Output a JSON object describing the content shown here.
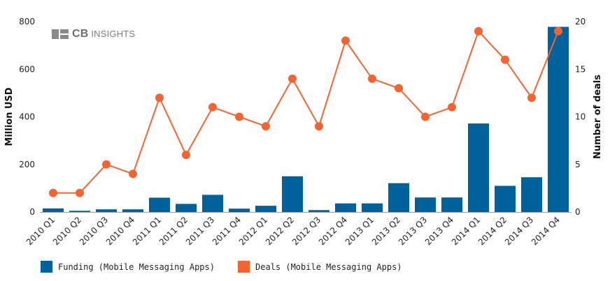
{
  "chart_data": {
    "type": "bar+line",
    "categories": [
      "2010 Q1",
      "2010 Q2",
      "2010 Q3",
      "2010 Q4",
      "2011 Q1",
      "2011 Q2",
      "2011 Q3",
      "2011 Q4",
      "2012 Q1",
      "2012 Q2",
      "2012 Q3",
      "2012 Q4",
      "2013 Q1",
      "2013 Q2",
      "2013 Q3",
      "2013 Q4",
      "2014 Q1",
      "2014 Q2",
      "2014 Q3",
      "2014 Q4"
    ],
    "series": [
      {
        "name": "Funding (Mobile Messaging Apps)",
        "type": "bar",
        "axis": "left",
        "color": "#00629b",
        "values": [
          15,
          5,
          11,
          11,
          60,
          34,
          72,
          14,
          26,
          150,
          8,
          36,
          36,
          121,
          61,
          61,
          372,
          110,
          146,
          778
        ]
      },
      {
        "name": "Deals (Mobile Messaging Apps)",
        "type": "line",
        "axis": "right",
        "color": "#f26432",
        "values": [
          2,
          2,
          5,
          4,
          12,
          6,
          11,
          10,
          9,
          14,
          9,
          18,
          14,
          13,
          10,
          11,
          19,
          16,
          12,
          19
        ]
      }
    ],
    "ylabel_left": "Million USD",
    "ylabel_right": "Number of deals",
    "ylim_left": [
      0,
      800
    ],
    "ylim_right": [
      0,
      20
    ],
    "yticks_left": [
      "0",
      "200",
      "400",
      "600",
      "800"
    ],
    "yticks_right": [
      "0",
      "5",
      "10",
      "15",
      "20"
    ],
    "grid": false,
    "legend_position": "bottom-left"
  },
  "watermark": {
    "brand": "CB",
    "suffix": "INSIGHTS"
  }
}
